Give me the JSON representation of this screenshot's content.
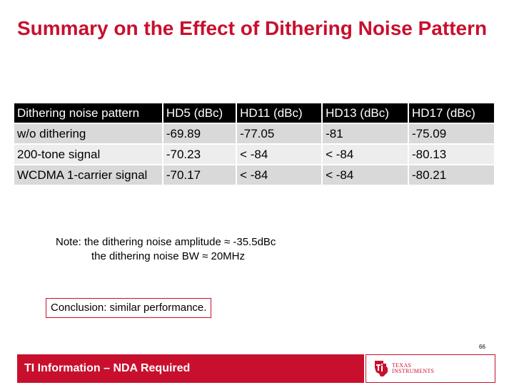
{
  "title": "Summary on the Effect of Dithering Noise Pattern",
  "table": {
    "headers": [
      "Dithering noise pattern",
      "HD5 (dBc)",
      "HD11 (dBc)",
      "HD13 (dBc)",
      "HD17 (dBc)"
    ],
    "rows": [
      [
        "w/o dithering",
        "-69.89",
        "-77.05",
        "-81",
        "-75.09"
      ],
      [
        "200-tone signal",
        "-70.23",
        "< -84",
        "< -84",
        "-80.13"
      ],
      [
        "WCDMA 1-carrier signal",
        "-70.17",
        "< -84",
        "< -84",
        "-80.21"
      ]
    ]
  },
  "note": {
    "line1": "Note: the dithering noise amplitude ≈ -35.5dBc",
    "line2": "the dithering noise BW ≈ 20MHz"
  },
  "conclusion": "Conclusion: similar performance.",
  "page_number": "66",
  "footer": {
    "left_text": "TI Information – NDA Required",
    "logo_line1": "TEXAS",
    "logo_line2": "INSTRUMENTS"
  },
  "colors": {
    "accent": "#c8102e",
    "header_bg": "#000000",
    "row_odd": "#d9d9d9",
    "row_even": "#ededed"
  },
  "icons": {
    "logo": "ti-logo-icon"
  }
}
